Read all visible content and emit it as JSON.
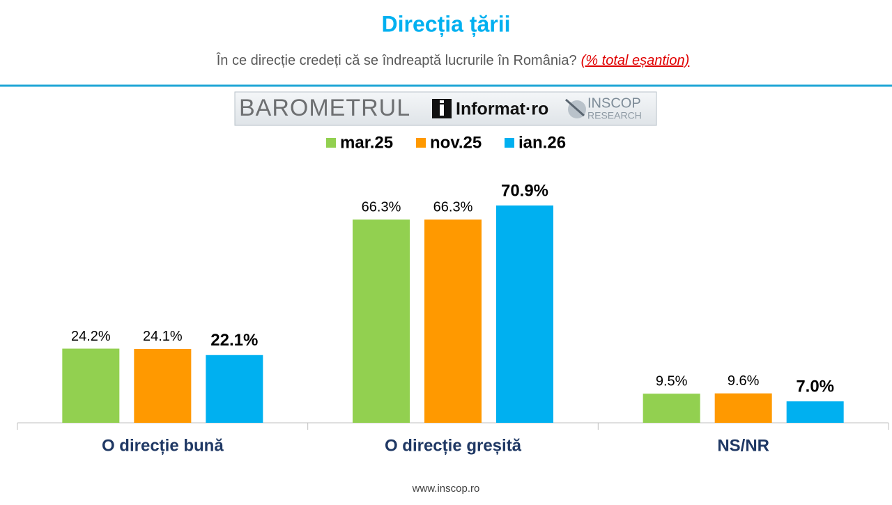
{
  "chart_data": {
    "type": "bar",
    "title": "Direcția țării",
    "subtitle": "În ce direcție credeți că se îndreaptă lucrurile în România?",
    "subtitle_note": "(% total eșantion)",
    "categories": [
      "O direcție bună",
      "O direcție greșită",
      "NS/NR"
    ],
    "series": [
      {
        "name": "mar.25",
        "color": "#92d050",
        "values": [
          24.2,
          66.3,
          9.5
        ],
        "value_labels": [
          "24.2%",
          "66.3%",
          "9.5%"
        ]
      },
      {
        "name": "nov.25",
        "color": "#ff9900",
        "values": [
          24.1,
          66.3,
          9.6
        ],
        "value_labels": [
          "24.1%",
          "66.3%",
          "9.6%"
        ]
      },
      {
        "name": "ian.26",
        "color": "#00b0f0",
        "values": [
          22.1,
          70.9,
          7.0
        ],
        "value_labels": [
          "22.1%",
          "70.9%",
          "7.0%"
        ]
      }
    ]
  },
  "logo": {
    "barometrul": "BAROMETRUL",
    "informat": "Informat·ro",
    "inscop": "INSCOP",
    "research": "RESEARCH"
  },
  "footer": "www.inscop.ro"
}
